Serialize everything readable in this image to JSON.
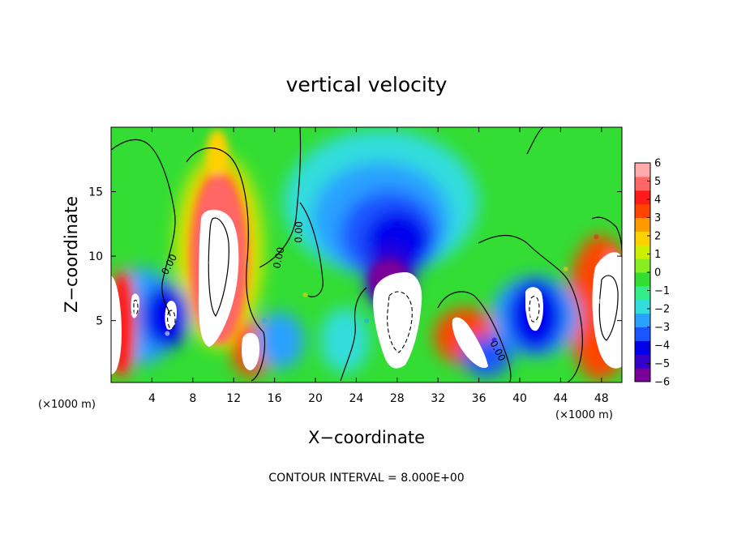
{
  "chart_data": {
    "type": "heatmap",
    "title": "vertical velocity",
    "xlabel": "X−coordinate",
    "ylabel": "Z−coordinate",
    "x_units_left": "(×1000 m)",
    "x_units_right": "(×1000 m)",
    "footer": "CONTOUR INTERVAL = 8.000E+00",
    "xlim": [
      0,
      50
    ],
    "ylim": [
      0.2,
      20
    ],
    "xticks": [
      4,
      8,
      12,
      16,
      20,
      24,
      28,
      32,
      36,
      40,
      44,
      48
    ],
    "xtick_labels": [
      "4",
      "8",
      "12",
      "16",
      "20",
      "24",
      "28",
      "32",
      "36",
      "40",
      "44",
      "48"
    ],
    "yticks": [
      5,
      10,
      15
    ],
    "ytick_labels": [
      "5",
      "10",
      "15"
    ],
    "colorbar": {
      "min": -6,
      "max": 6,
      "ticks": [
        6,
        5,
        4,
        3,
        2,
        1,
        0,
        -1,
        -2,
        -3,
        -4,
        -5,
        -6
      ],
      "tick_labels": [
        "6",
        "5",
        "4",
        "3",
        "2",
        "1",
        "0",
        "−1",
        "−2",
        "−3",
        "−4",
        "−5",
        "−6"
      ],
      "colors": [
        "#7a0099",
        "#3300cc",
        "#0000ee",
        "#1a55ff",
        "#2aa0ff",
        "#33dddd",
        "#33ee88",
        "#33dd33",
        "#88ee22",
        "#ccee00",
        "#ffd000",
        "#ff9900",
        "#ff4400",
        "#ff1a1a",
        "#ff6666",
        "#ffaaaa"
      ]
    },
    "contour_labels": [
      "0.00",
      "0.00",
      "0.00",
      "0.00"
    ],
    "cells": [
      {
        "x": 0.6,
        "z": 5.5,
        "value": 9
      },
      {
        "x": 9.8,
        "z": 9.5,
        "value": 9
      },
      {
        "x": 10.2,
        "z": 14.5,
        "value": 5
      },
      {
        "x": 13.5,
        "z": 2.5,
        "value": 9
      },
      {
        "x": 34.5,
        "z": 3.5,
        "value": 8
      },
      {
        "x": 47.8,
        "z": 6.5,
        "value": 9
      },
      {
        "x": 47.5,
        "z": 11.5,
        "value": 4
      },
      {
        "x": 28.5,
        "z": 4.5,
        "value": -9
      },
      {
        "x": 28.0,
        "z": 12.5,
        "value": -4.5
      },
      {
        "x": 2.2,
        "z": 5.5,
        "value": -8
      },
      {
        "x": 5.5,
        "z": 4.0,
        "value": -8
      },
      {
        "x": 41.0,
        "z": 5.5,
        "value": -8
      },
      {
        "x": 15.0,
        "z": 5.0,
        "value": -3
      },
      {
        "x": 37.5,
        "z": 3.5,
        "value": -4
      },
      {
        "x": 19.0,
        "z": 7.0,
        "value": 1.5
      },
      {
        "x": 25.0,
        "z": 5.0,
        "value": -2.5
      },
      {
        "x": 44.5,
        "z": 9.0,
        "value": 1.5
      }
    ]
  }
}
